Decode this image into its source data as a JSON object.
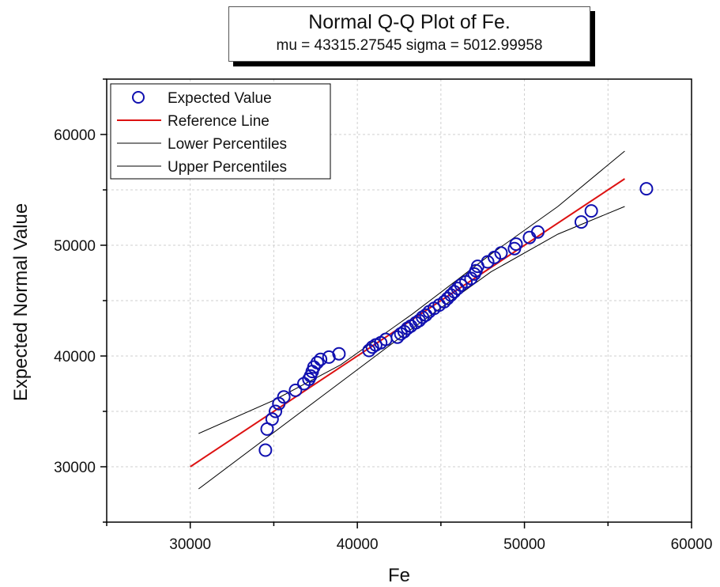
{
  "chart_data": {
    "type": "scatter",
    "title": "Normal Q-Q Plot of Fe.",
    "subtitle": "mu = 43315.27545  sigma = 5012.99958",
    "xlabel": "Fe",
    "ylabel": "Expected Normal Value",
    "xlim": [
      25000,
      60000
    ],
    "ylim": [
      25000,
      65000
    ],
    "xticks": [
      "30000",
      "40000",
      "50000",
      "60000"
    ],
    "yticks": [
      "30000",
      "40000",
      "50000",
      "60000"
    ],
    "grid": true,
    "legend_position": "top-left",
    "legend": [
      "Expected Value",
      "Reference Line",
      "Lower Percentiles",
      "Upper Percentiles"
    ],
    "colors": {
      "points": "#1010b0",
      "reference": "#dd1111",
      "percentiles": "#000000"
    },
    "series": [
      {
        "name": "Expected Value",
        "kind": "points",
        "x": [
          34500,
          34600,
          34900,
          35100,
          35300,
          35600,
          36300,
          36800,
          37100,
          37200,
          37300,
          37400,
          37600,
          37800,
          38300,
          38900,
          40700,
          40900,
          41100,
          41400,
          41700,
          42400,
          42600,
          42800,
          43000,
          43200,
          43500,
          43700,
          43900,
          44100,
          44300,
          44600,
          44900,
          45200,
          45400,
          45600,
          45800,
          46000,
          46200,
          46500,
          46800,
          47000,
          47100,
          47200,
          47800,
          48200,
          48600,
          49400,
          49500,
          50300,
          50800,
          53400,
          54000,
          57300
        ],
        "y": [
          31500,
          33400,
          34300,
          35000,
          35700,
          36300,
          36900,
          37500,
          37900,
          38200,
          38600,
          39000,
          39400,
          39700,
          39900,
          40200,
          40500,
          40800,
          41000,
          41200,
          41500,
          41700,
          42000,
          42200,
          42500,
          42700,
          43000,
          43200,
          43500,
          43700,
          44000,
          44300,
          44600,
          44900,
          45200,
          45500,
          45800,
          46100,
          46400,
          46700,
          47000,
          47400,
          47700,
          48100,
          48500,
          48900,
          49300,
          49700,
          50100,
          50700,
          51200,
          52100,
          53100,
          55100
        ]
      },
      {
        "name": "Reference Line",
        "kind": "line",
        "x": [
          30000,
          56000
        ],
        "y": [
          30000,
          56000
        ]
      },
      {
        "name": "Lower Percentiles",
        "kind": "line",
        "x": [
          30500,
          38000,
          43300,
          48000,
          52000,
          56000
        ],
        "y": [
          28000,
          36500,
          42500,
          47600,
          51000,
          53500
        ]
      },
      {
        "name": "Upper Percentiles",
        "kind": "line",
        "x": [
          30500,
          35000,
          39000,
          43300,
          48000,
          52000,
          56000
        ],
        "y": [
          33000,
          36000,
          39200,
          43800,
          49200,
          53500,
          58500
        ]
      }
    ]
  }
}
